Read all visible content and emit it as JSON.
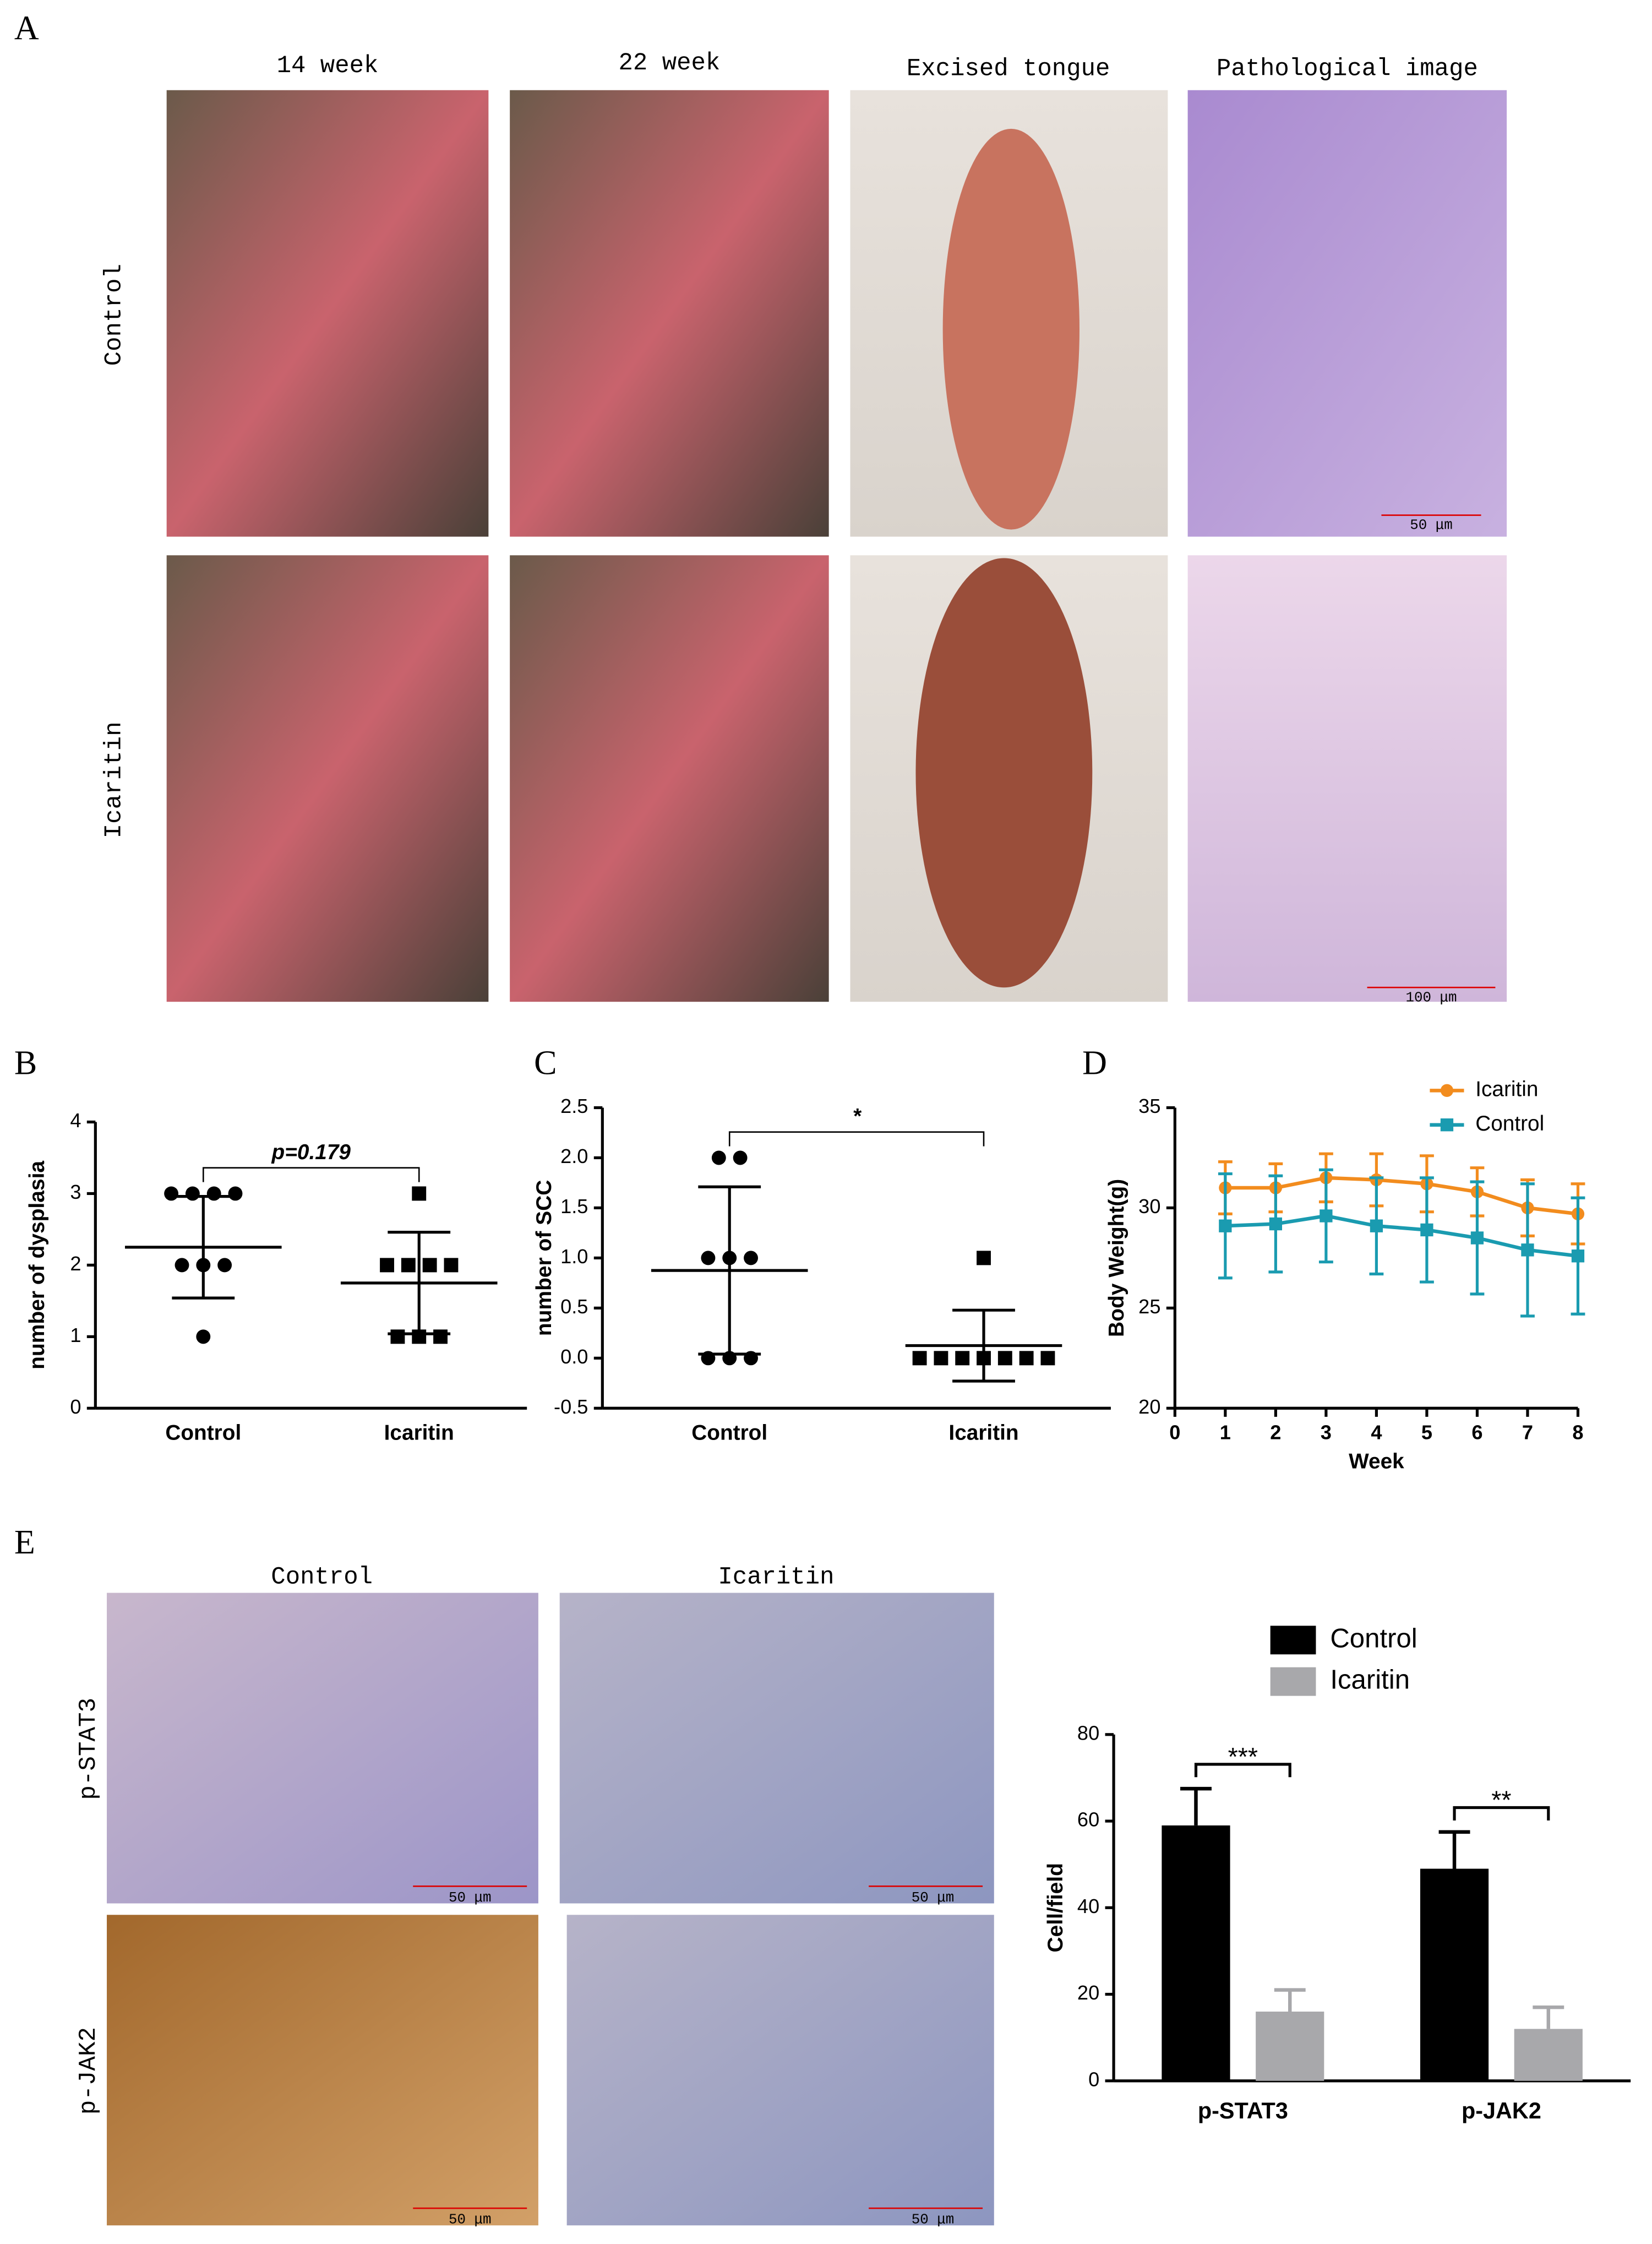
{
  "panel_labels": [
    "A",
    "B",
    "C",
    "D",
    "E"
  ],
  "figure_a": {
    "columns": [
      "14 week",
      "22 week",
      "Excised tongue",
      "Pathological image"
    ],
    "rows": [
      "Control",
      "Icaritin"
    ],
    "scale_bars": [
      "50 μm",
      "100 μm"
    ]
  },
  "figure_e": {
    "columns": [
      "Control",
      "Icaritin"
    ],
    "rows": [
      "p-STAT3",
      "p-JAK2"
    ],
    "scale_bars": [
      "50 μm",
      "50 μm",
      "50 μm",
      "50 μm"
    ]
  },
  "chart_data": [
    {
      "type": "dotplot",
      "y_label": "number of dysplasia",
      "categories": [
        "Control",
        "Icaritin"
      ],
      "points": [
        [
          3,
          3,
          3,
          3,
          2,
          2,
          2,
          1
        ],
        [
          3,
          2,
          2,
          2,
          2,
          1,
          1,
          1
        ]
      ],
      "mean": [
        2.25,
        1.75
      ],
      "sd": [
        0.71,
        0.71
      ],
      "markers": [
        "circle",
        "square"
      ],
      "color": "#000000",
      "annotation": "p=0.179",
      "ylim": [
        0,
        4
      ],
      "yticks": [
        0,
        1,
        2,
        3,
        4
      ]
    },
    {
      "type": "dotplot",
      "y_label": "number of SCC",
      "categories": [
        "Control",
        "Icaritin"
      ],
      "points": [
        [
          2,
          2,
          1,
          1,
          1,
          0,
          0,
          0
        ],
        [
          1,
          0,
          0,
          0,
          0,
          0,
          0,
          0
        ]
      ],
      "mean": [
        0.875,
        0.125
      ],
      "sd": [
        0.835,
        0.354
      ],
      "markers": [
        "circle",
        "square"
      ],
      "color": "#000000",
      "annotation": "*",
      "ylim": [
        -0.5,
        2.5
      ],
      "yticks": [
        -0.5,
        {
          "value": 0,
          "label": "0.0"
        },
        0.5,
        {
          "value": 1,
          "label": "1.0"
        },
        1.5,
        {
          "value": 2,
          "label": "2.0"
        },
        2.5
      ]
    },
    {
      "type": "line",
      "x_label": "Week",
      "y_label": "Body Weight(g)",
      "x": [
        1,
        2,
        3,
        4,
        5,
        6,
        7,
        8
      ],
      "series": [
        {
          "name": "Icaritin",
          "color": "#f28c1e",
          "marker": "circle",
          "values": [
            31.0,
            31.0,
            31.5,
            31.4,
            31.2,
            30.8,
            30.0,
            29.7
          ],
          "errors": [
            1.3,
            1.2,
            1.2,
            1.3,
            1.4,
            1.2,
            1.4,
            1.5
          ]
        },
        {
          "name": "Control",
          "color": "#1a9bb0",
          "marker": "square",
          "values": [
            29.1,
            29.2,
            29.6,
            29.1,
            28.9,
            28.5,
            27.9,
            27.6
          ],
          "errors": [
            2.6,
            2.4,
            2.3,
            2.4,
            2.6,
            2.8,
            3.3,
            2.9
          ]
        }
      ],
      "xlim": [
        0,
        8
      ],
      "xticks": [
        0,
        1,
        2,
        3,
        4,
        5,
        6,
        7,
        8
      ],
      "ylim": [
        20,
        35
      ],
      "yticks": [
        20,
        25,
        30,
        35
      ],
      "legend": "top-right"
    },
    {
      "type": "bar",
      "y_label": "Cell/field",
      "categories": [
        "p-STAT3",
        "p-JAK2"
      ],
      "series": [
        {
          "name": "Control",
          "color": "#000000",
          "values": [
            59,
            49
          ],
          "errors": [
            8.5,
            8.5
          ]
        },
        {
          "name": "Icaritin",
          "color": "#a8a8ab",
          "values": [
            16,
            12
          ],
          "errors": [
            5,
            5
          ]
        }
      ],
      "annotations": [
        "***",
        "**"
      ],
      "ylim": [
        0,
        80
      ],
      "yticks": [
        0,
        20,
        40,
        60,
        80
      ],
      "legend": "top"
    }
  ]
}
